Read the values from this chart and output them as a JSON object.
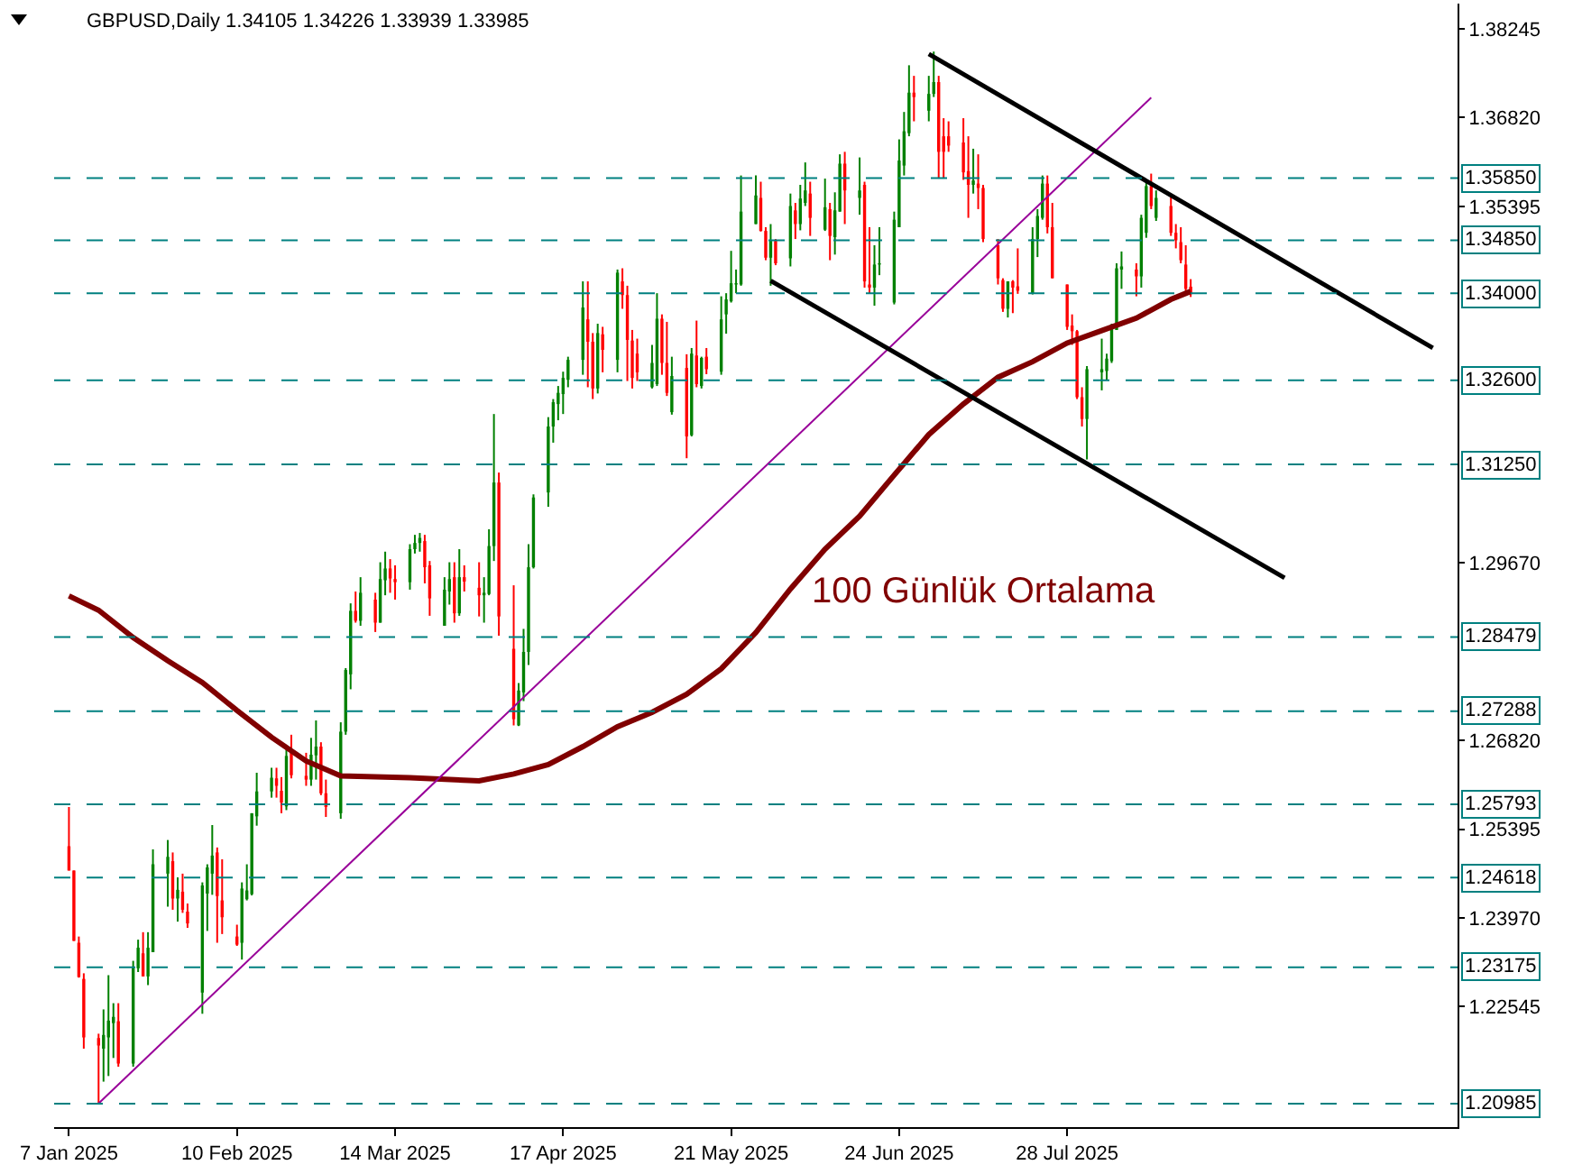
{
  "chart_data": {
    "type": "candlestick",
    "title": "GBPUSD,Daily 1.34105 1.34226 1.33939 1.33985",
    "x": [
      "2025-01-07",
      "2025-01-08",
      "2025-01-09",
      "2025-01-10",
      "2025-01-13",
      "2025-01-14",
      "2025-01-15",
      "2025-01-16",
      "2025-01-17",
      "2025-01-20",
      "2025-01-21",
      "2025-01-22",
      "2025-01-23",
      "2025-01-24",
      "2025-01-27",
      "2025-01-28",
      "2025-01-29",
      "2025-01-30",
      "2025-01-31",
      "2025-02-03",
      "2025-02-04",
      "2025-02-05",
      "2025-02-06",
      "2025-02-07",
      "2025-02-10",
      "2025-02-11",
      "2025-02-12",
      "2025-02-13",
      "2025-02-14",
      "2025-02-17",
      "2025-02-18",
      "2025-02-19",
      "2025-02-20",
      "2025-02-21",
      "2025-02-24",
      "2025-02-25",
      "2025-02-26",
      "2025-02-27",
      "2025-02-28",
      "2025-03-03",
      "2025-03-04",
      "2025-03-05",
      "2025-03-06",
      "2025-03-07",
      "2025-03-10",
      "2025-03-11",
      "2025-03-12",
      "2025-03-13",
      "2025-03-14",
      "2025-03-17",
      "2025-03-18",
      "2025-03-19",
      "2025-03-20",
      "2025-03-21",
      "2025-03-24",
      "2025-03-25",
      "2025-03-26",
      "2025-03-27",
      "2025-03-28",
      "2025-03-31",
      "2025-04-01",
      "2025-04-02",
      "2025-04-03",
      "2025-04-04",
      "2025-04-07",
      "2025-04-08",
      "2025-04-09",
      "2025-04-10",
      "2025-04-11",
      "2025-04-14",
      "2025-04-15",
      "2025-04-16",
      "2025-04-17",
      "2025-04-18",
      "2025-04-21",
      "2025-04-22",
      "2025-04-23",
      "2025-04-24",
      "2025-04-25",
      "2025-04-28",
      "2025-04-29",
      "2025-04-30",
      "2025-05-01",
      "2025-05-02",
      "2025-05-05",
      "2025-05-06",
      "2025-05-07",
      "2025-05-08",
      "2025-05-09",
      "2025-05-12",
      "2025-05-13",
      "2025-05-14",
      "2025-05-15",
      "2025-05-16",
      "2025-05-19",
      "2025-05-20",
      "2025-05-21",
      "2025-05-22",
      "2025-05-23",
      "2025-05-26",
      "2025-05-27",
      "2025-05-28",
      "2025-05-29",
      "2025-05-30",
      "2025-06-02",
      "2025-06-03",
      "2025-06-04",
      "2025-06-05",
      "2025-06-06",
      "2025-06-09",
      "2025-06-10",
      "2025-06-11",
      "2025-06-12",
      "2025-06-13",
      "2025-06-16",
      "2025-06-17",
      "2025-06-18",
      "2025-06-19",
      "2025-06-20",
      "2025-06-23",
      "2025-06-24",
      "2025-06-25",
      "2025-06-26",
      "2025-06-27",
      "2025-06-30",
      "2025-07-01",
      "2025-07-02",
      "2025-07-03",
      "2025-07-04",
      "2025-07-07",
      "2025-07-08",
      "2025-07-09",
      "2025-07-10",
      "2025-07-11",
      "2025-07-14",
      "2025-07-15",
      "2025-07-16",
      "2025-07-17",
      "2025-07-18",
      "2025-07-21",
      "2025-07-22",
      "2025-07-23",
      "2025-07-24",
      "2025-07-25",
      "2025-07-28",
      "2025-07-29",
      "2025-07-30",
      "2025-07-31",
      "2025-08-01",
      "2025-08-04",
      "2025-08-05",
      "2025-08-06",
      "2025-08-07",
      "2025-08-08",
      "2025-08-11",
      "2025-08-12",
      "2025-08-13",
      "2025-08-14",
      "2025-08-15",
      "2025-08-18",
      "2025-08-19",
      "2025-08-20",
      "2025-08-21",
      "2025-08-22"
    ],
    "ohlc": [
      [
        1.2512,
        1.2575,
        1.2473,
        1.2473
      ],
      [
        1.2473,
        1.2473,
        1.236,
        1.236
      ],
      [
        1.2357,
        1.2367,
        1.2301,
        1.2302
      ],
      [
        1.2299,
        1.2308,
        1.2187,
        1.2205
      ],
      [
        1.2204,
        1.2211,
        1.2098,
        1.2192
      ],
      [
        1.2187,
        1.225,
        1.2134,
        1.2209
      ],
      [
        1.2205,
        1.2305,
        1.2143,
        1.2232
      ],
      [
        1.2228,
        1.226,
        1.2172,
        1.2238
      ],
      [
        1.2231,
        1.226,
        1.2158,
        1.2163
      ],
      [
        1.2163,
        1.2328,
        1.2158,
        1.2316
      ],
      [
        1.2316,
        1.2362,
        1.231,
        1.2349
      ],
      [
        1.234,
        1.2374,
        1.2303,
        1.2303
      ],
      [
        1.2303,
        1.2374,
        1.2289,
        1.2349
      ],
      [
        1.2342,
        1.2507,
        1.2342,
        1.2483
      ],
      [
        1.2468,
        1.2522,
        1.2415,
        1.2495
      ],
      [
        1.2488,
        1.2502,
        1.241,
        1.2428
      ],
      [
        1.2428,
        1.2462,
        1.2391,
        1.2442
      ],
      [
        1.2439,
        1.2468,
        1.2405,
        1.241
      ],
      [
        1.2407,
        1.242,
        1.2381,
        1.2388
      ],
      [
        1.2277,
        1.2454,
        1.2243,
        1.2449
      ],
      [
        1.2436,
        1.2483,
        1.2376,
        1.2478
      ],
      [
        1.2468,
        1.2546,
        1.2434,
        1.2497
      ],
      [
        1.2502,
        1.251,
        1.2357,
        1.2432
      ],
      [
        1.2425,
        1.2491,
        1.2371,
        1.2398
      ],
      [
        1.2367,
        1.2386,
        1.2352,
        1.2354
      ],
      [
        1.2357,
        1.2454,
        1.233,
        1.2444
      ],
      [
        1.2427,
        1.2483,
        1.2425,
        1.2441
      ],
      [
        1.2435,
        1.2565,
        1.2433,
        1.2565
      ],
      [
        1.256,
        1.263,
        1.2545,
        1.26
      ],
      [
        1.26,
        1.2638,
        1.259,
        1.2622
      ],
      [
        1.2621,
        1.2638,
        1.259,
        1.2609
      ],
      [
        1.2601,
        1.2623,
        1.2565,
        1.2582
      ],
      [
        1.2576,
        1.2667,
        1.257,
        1.2657
      ],
      [
        1.2665,
        1.2691,
        1.2621,
        1.2626
      ],
      [
        1.2625,
        1.2662,
        1.2609,
        1.2619
      ],
      [
        1.2619,
        1.2686,
        1.2609,
        1.2659
      ],
      [
        1.2658,
        1.2714,
        1.2619,
        1.2672
      ],
      [
        1.2672,
        1.2679,
        1.2594,
        1.2597
      ],
      [
        1.2597,
        1.2619,
        1.2559,
        1.2575
      ],
      [
        1.2565,
        1.2711,
        1.2556,
        1.2696
      ],
      [
        1.2696,
        1.2798,
        1.2691,
        1.2795
      ],
      [
        1.2788,
        1.2902,
        1.2764,
        1.289
      ],
      [
        1.289,
        1.2921,
        1.2871,
        1.2874
      ],
      [
        1.2874,
        1.2944,
        1.2866,
        1.2919
      ],
      [
        1.2908,
        1.2919,
        1.2856,
        1.2871
      ],
      [
        1.2871,
        1.2968,
        1.2871,
        1.2941
      ],
      [
        1.2939,
        1.2985,
        1.2915,
        1.2958
      ],
      [
        1.2958,
        1.2973,
        1.2919,
        1.2942
      ],
      [
        1.2941,
        1.2963,
        1.2908,
        1.2936
      ],
      [
        1.2936,
        1.2997,
        1.2924,
        1.2989
      ],
      [
        1.2989,
        1.3012,
        1.2982,
        1.2999
      ],
      [
        1.2999,
        1.3015,
        1.2985,
        1.3007
      ],
      [
        1.3002,
        1.3012,
        1.2934,
        1.296
      ],
      [
        1.2963,
        1.297,
        1.2882,
        1.291
      ],
      [
        1.2866,
        1.2944,
        1.2866,
        1.2924
      ],
      [
        1.2921,
        1.2968,
        1.29,
        1.2941
      ],
      [
        1.2944,
        1.2968,
        1.2871,
        1.2886
      ],
      [
        1.2886,
        1.2989,
        1.2882,
        1.2944
      ],
      [
        1.2944,
        1.2963,
        1.2921,
        1.2937
      ],
      [
        1.2927,
        1.2968,
        1.2881,
        1.2915
      ],
      [
        1.2915,
        1.2944,
        1.2871,
        1.2919
      ],
      [
        1.2917,
        1.3021,
        1.2915,
        1.2994
      ],
      [
        1.2994,
        1.3206,
        1.297,
        1.3096
      ],
      [
        1.3096,
        1.3112,
        1.285,
        1.2881
      ],
      [
        1.2829,
        1.2931,
        1.2706,
        1.2716
      ],
      [
        1.2706,
        1.2774,
        1.2705,
        1.2762
      ],
      [
        1.2759,
        1.2861,
        1.2745,
        1.2824
      ],
      [
        1.2824,
        1.2997,
        1.2803,
        1.296
      ],
      [
        1.296,
        1.3077,
        1.2958,
        1.3072
      ],
      [
        1.308,
        1.3201,
        1.3057,
        1.3186
      ],
      [
        1.3186,
        1.323,
        1.316,
        1.3225
      ],
      [
        1.3222,
        1.3251,
        1.3196,
        1.324
      ],
      [
        1.3238,
        1.3274,
        1.3206,
        1.3264
      ],
      [
        1.3261,
        1.3298,
        1.3249,
        1.3293
      ],
      [
        1.3293,
        1.3419,
        1.3269,
        1.3377
      ],
      [
        1.3358,
        1.3419,
        1.3249,
        1.3322
      ],
      [
        1.3322,
        1.3336,
        1.323,
        1.3247
      ],
      [
        1.3247,
        1.3351,
        1.3239,
        1.3336
      ],
      [
        1.3334,
        1.3346,
        1.3273,
        1.3309
      ],
      [
        1.3293,
        1.3438,
        1.3273,
        1.3433
      ],
      [
        1.3419,
        1.344,
        1.3375,
        1.3397
      ],
      [
        1.3397,
        1.3412,
        1.3259,
        1.3325
      ],
      [
        1.3324,
        1.3341,
        1.3247,
        1.3264
      ],
      [
        1.3303,
        1.3327,
        1.3259,
        1.3273
      ],
      [
        1.3249,
        1.3317,
        1.3247,
        1.3288
      ],
      [
        1.3254,
        1.34,
        1.3251,
        1.3359
      ],
      [
        1.3359,
        1.3366,
        1.3269,
        1.3288
      ],
      [
        1.3288,
        1.3354,
        1.3235,
        1.324
      ],
      [
        1.3209,
        1.3298,
        1.3205,
        1.3267
      ],
      [
        1.328,
        1.3302,
        1.3135,
        1.317
      ],
      [
        1.3172,
        1.3312,
        1.317,
        1.3303
      ],
      [
        1.33,
        1.3356,
        1.3249,
        1.3254
      ],
      [
        1.3251,
        1.3298,
        1.3247,
        1.3296
      ],
      [
        1.3298,
        1.3312,
        1.327,
        1.3278
      ],
      [
        1.3274,
        1.3395,
        1.3269,
        1.3358
      ],
      [
        1.3366,
        1.34,
        1.3335,
        1.339
      ],
      [
        1.3387,
        1.3468,
        1.3385,
        1.3416
      ],
      [
        1.3414,
        1.3438,
        1.34,
        1.3416
      ],
      [
        1.3414,
        1.3589,
        1.3412,
        1.3531
      ],
      [
        1.3511,
        1.3589,
        1.3511,
        1.3557
      ],
      [
        1.3553,
        1.3579,
        1.3499,
        1.35
      ],
      [
        1.35,
        1.3506,
        1.3453,
        1.3457
      ],
      [
        1.3457,
        1.3511,
        1.3412,
        1.3484
      ],
      [
        1.3484,
        1.3487,
        1.3445,
        1.3448
      ],
      [
        1.3456,
        1.356,
        1.3443,
        1.354
      ],
      [
        1.3533,
        1.3545,
        1.3487,
        1.3511
      ],
      [
        1.3511,
        1.3574,
        1.3501,
        1.3552
      ],
      [
        1.3545,
        1.361,
        1.354,
        1.3565
      ],
      [
        1.356,
        1.3579,
        1.3492,
        1.3521
      ],
      [
        1.3502,
        1.3584,
        1.35,
        1.3538
      ],
      [
        1.3535,
        1.3545,
        1.3453,
        1.3492
      ],
      [
        1.349,
        1.3562,
        1.3462,
        1.3533
      ],
      [
        1.3531,
        1.3623,
        1.3531,
        1.3608
      ],
      [
        1.3608,
        1.3627,
        1.3511,
        1.3565
      ],
      [
        1.3553,
        1.3618,
        1.3526,
        1.3565
      ],
      [
        1.3574,
        1.3579,
        1.3409,
        1.3419
      ],
      [
        1.3414,
        1.3506,
        1.34,
        1.3409
      ],
      [
        1.3409,
        1.3477,
        1.338,
        1.3446
      ],
      [
        1.3446,
        1.3506,
        1.3429,
        1.3448
      ],
      [
        1.3385,
        1.3531,
        1.3382,
        1.3518
      ],
      [
        1.3506,
        1.3647,
        1.3506,
        1.3613
      ],
      [
        1.3605,
        1.3691,
        1.3589,
        1.366
      ],
      [
        1.3657,
        1.3766,
        1.3652,
        1.3722
      ],
      [
        1.3722,
        1.3749,
        1.3676,
        1.3715
      ],
      [
        1.3693,
        1.3749,
        1.3676,
        1.372
      ],
      [
        1.372,
        1.3788,
        1.3715,
        1.3739
      ],
      [
        1.3739,
        1.3749,
        1.3584,
        1.3627
      ],
      [
        1.3652,
        1.3681,
        1.3584,
        1.3627
      ],
      [
        1.3652,
        1.3676,
        1.3627,
        1.3637
      ],
      [
        1.3642,
        1.3681,
        1.3582,
        1.3594
      ],
      [
        1.3596,
        1.3652,
        1.3521,
        1.3574
      ],
      [
        1.3574,
        1.3632,
        1.356,
        1.3581
      ],
      [
        1.3576,
        1.3623,
        1.3535,
        1.3569
      ],
      [
        1.3569,
        1.3574,
        1.3482,
        1.3487
      ],
      [
        1.3477,
        1.3487,
        1.3414,
        1.3424
      ],
      [
        1.3421,
        1.3424,
        1.337,
        1.3375
      ],
      [
        1.3375,
        1.3419,
        1.3361,
        1.3419
      ],
      [
        1.3419,
        1.3421,
        1.3368,
        1.3409
      ],
      [
        1.3411,
        1.3472,
        1.3399,
        1.3404
      ],
      [
        1.3399,
        1.3506,
        1.3398,
        1.3487
      ],
      [
        1.3487,
        1.3535,
        1.3458,
        1.3524
      ],
      [
        1.3521,
        1.3589,
        1.3518,
        1.3576
      ],
      [
        1.3576,
        1.3589,
        1.3496,
        1.3506
      ],
      [
        1.3506,
        1.3545,
        1.3424,
        1.3424
      ],
      [
        1.3414,
        1.3414,
        1.3341,
        1.3346
      ],
      [
        1.3348,
        1.3366,
        1.3317,
        1.3339
      ],
      [
        1.3339,
        1.3341,
        1.323,
        1.3233
      ],
      [
        1.3233,
        1.3249,
        1.3186,
        1.3198
      ],
      [
        1.3198,
        1.3283,
        1.3133,
        1.3278
      ],
      [
        1.3273,
        1.3327,
        1.3244,
        1.3278
      ],
      [
        1.3275,
        1.3303,
        1.326,
        1.3295
      ],
      [
        1.3291,
        1.3351,
        1.3288,
        1.3343
      ],
      [
        1.3341,
        1.3448,
        1.3341,
        1.344
      ],
      [
        1.3438,
        1.3467,
        1.3407,
        1.3443
      ],
      [
        1.3438,
        1.3448,
        1.3395,
        1.3427
      ],
      [
        1.3427,
        1.3526,
        1.3409,
        1.3521
      ],
      [
        1.3497,
        1.3579,
        1.3489,
        1.3572
      ],
      [
        1.3572,
        1.3592,
        1.3535,
        1.354
      ],
      [
        1.3521,
        1.3565,
        1.3516,
        1.3553
      ],
      [
        1.354,
        1.3555,
        1.3492,
        1.3497
      ],
      [
        1.3497,
        1.3511,
        1.3472,
        1.3485
      ],
      [
        1.3482,
        1.3506,
        1.3448,
        1.3453
      ],
      [
        1.3446,
        1.3477,
        1.3401,
        1.3407
      ],
      [
        1.34105,
        1.34226,
        1.33939,
        1.33985
      ]
    ],
    "colors": [
      "#ff0000",
      "#ff0000",
      "#ff0000",
      "#ff0000",
      "#ff0000",
      "#008000",
      "#008000",
      "#008000",
      "#ff0000",
      "#008000",
      "#008000",
      "#ff0000",
      "#008000",
      "#008000",
      "#008000",
      "#ff0000",
      "#008000",
      "#ff0000",
      "#ff0000",
      "#008000",
      "#008000",
      "#008000",
      "#ff0000",
      "#ff0000",
      "#ff0000",
      "#008000",
      "#008000",
      "#008000",
      "#008000",
      "#008000",
      "#ff0000",
      "#ff0000",
      "#008000",
      "#ff0000",
      "#ff0000",
      "#008000",
      "#008000",
      "#ff0000",
      "#ff0000",
      "#008000",
      "#008000",
      "#008000",
      "#ff0000",
      "#008000",
      "#ff0000",
      "#008000",
      "#008000",
      "#ff0000",
      "#ff0000",
      "#008000",
      "#008000",
      "#008000",
      "#ff0000",
      "#ff0000",
      "#008000",
      "#008000",
      "#ff0000",
      "#008000",
      "#ff0000",
      "#ff0000",
      "#008000",
      "#008000",
      "#008000",
      "#ff0000",
      "#ff0000",
      "#008000",
      "#008000",
      "#008000",
      "#008000",
      "#008000",
      "#008000",
      "#008000",
      "#008000",
      "#008000",
      "#008000",
      "#ff0000",
      "#ff0000",
      "#008000",
      "#ff0000",
      "#008000",
      "#ff0000",
      "#ff0000",
      "#ff0000",
      "#ff0000",
      "#008000",
      "#008000",
      "#ff0000",
      "#ff0000",
      "#008000",
      "#ff0000",
      "#008000",
      "#ff0000",
      "#008000",
      "#ff0000",
      "#008000",
      "#008000",
      "#008000",
      "#008000",
      "#008000",
      "#008000",
      "#ff0000",
      "#ff0000",
      "#008000",
      "#ff0000",
      "#008000",
      "#ff0000",
      "#008000",
      "#008000",
      "#ff0000",
      "#008000",
      "#ff0000",
      "#008000",
      "#008000",
      "#ff0000",
      "#008000",
      "#ff0000",
      "#ff0000",
      "#008000",
      "#008000",
      "#008000",
      "#008000",
      "#008000",
      "#008000",
      "#ff0000",
      "#008000",
      "#008000",
      "#ff0000",
      "#ff0000",
      "#ff0000",
      "#ff0000",
      "#ff0000",
      "#008000",
      "#ff0000",
      "#ff0000",
      "#ff0000",
      "#ff0000",
      "#008000",
      "#ff0000",
      "#ff0000",
      "#008000",
      "#008000",
      "#008000",
      "#ff0000",
      "#ff0000",
      "#ff0000",
      "#ff0000",
      "#ff0000",
      "#ff0000",
      "#008000",
      "#008000",
      "#008000",
      "#008000",
      "#008000",
      "#008000",
      "#ff0000",
      "#008000",
      "#008000",
      "#ff0000",
      "#008000",
      "#ff0000",
      "#ff0000",
      "#ff0000",
      "#ff0000",
      "#ff0000"
    ],
    "series": [
      {
        "type": "line",
        "color": "#800000",
        "x": [
          "2025-01-07",
          "2025-01-13",
          "2025-01-20",
          "2025-01-27",
          "2025-02-03",
          "2025-02-10",
          "2025-02-17",
          "2025-02-24",
          "2025-03-03",
          "2025-03-17",
          "2025-03-31",
          "2025-04-07",
          "2025-04-14",
          "2025-04-21",
          "2025-04-28",
          "2025-05-05",
          "2025-05-12",
          "2025-05-19",
          "2025-05-26",
          "2025-06-02",
          "2025-06-09",
          "2025-06-16",
          "2025-06-23",
          "2025-06-30",
          "2025-07-07",
          "2025-07-14",
          "2025-07-21",
          "2025-07-28",
          "2025-08-04",
          "2025-08-11",
          "2025-08-18",
          "2025-08-22"
        ],
        "values": [
          1.2914,
          1.2891,
          1.2847,
          1.281,
          1.2775,
          1.273,
          1.2687,
          1.2649,
          1.2625,
          1.2622,
          1.2617,
          1.2628,
          1.2643,
          1.2672,
          1.2704,
          1.2727,
          1.2756,
          1.2797,
          1.2855,
          1.2925,
          1.2989,
          1.3042,
          1.3108,
          1.3173,
          1.3222,
          1.3265,
          1.329,
          1.332,
          1.334,
          1.336,
          1.339,
          1.3403
        ]
      },
      {
        "type": "line",
        "color": "#990099",
        "x": [
          "2025-01-13",
          "2025-08-14"
        ],
        "values": [
          1.2099,
          1.3714
        ]
      },
      {
        "type": "line",
        "color": "#000000",
        "x": [
          "2025-06-30",
          "2025-10-10"
        ],
        "values": [
          1.3784,
          1.3312
        ]
      },
      {
        "type": "line",
        "color": "#000000",
        "x": [
          "2025-05-29",
          "2025-09-10"
        ],
        "values": [
          1.342,
          1.2943
        ]
      }
    ],
    "xlim": [
      "2025-01-04",
      "2025-10-15"
    ],
    "xticks": [
      {
        "value": "2025-01-07",
        "label": "7 Jan 2025"
      },
      {
        "value": "2025-02-10",
        "label": "10 Feb 2025"
      },
      {
        "value": "2025-03-14",
        "label": "14 Mar 2025"
      },
      {
        "value": "2025-04-17",
        "label": "17 Apr 2025"
      },
      {
        "value": "2025-05-21",
        "label": "21 May 2025"
      },
      {
        "value": "2025-06-24",
        "label": "24 Jun 2025"
      },
      {
        "value": "2025-07-28",
        "label": "28 Jul 2025"
      }
    ],
    "ylim": [
      1.2061,
      1.3865
    ],
    "yticks": [
      {
        "value": 1.22545,
        "label": "1.22545"
      },
      {
        "value": 1.2397,
        "label": "1.23970"
      },
      {
        "value": 1.25395,
        "label": "1.25395"
      },
      {
        "value": 1.2682,
        "label": "1.26820"
      },
      {
        "value": 1.2967,
        "label": "1.29670"
      },
      {
        "value": 1.35395,
        "label": "1.35395"
      },
      {
        "value": 1.3682,
        "label": "1.36820"
      },
      {
        "value": 1.38245,
        "label": "1.38245"
      }
    ],
    "ref_lines": [
      {
        "axis": "y",
        "value": 1.3585,
        "label": "1.35850",
        "color": "#008080",
        "line_style": "dashed"
      },
      {
        "axis": "y",
        "value": 1.3485,
        "label": "1.34850",
        "color": "#008080",
        "line_style": "dashed"
      },
      {
        "axis": "y",
        "value": 1.34,
        "label": "1.34000",
        "color": "#008080",
        "line_style": "dashed"
      },
      {
        "axis": "y",
        "value": 1.326,
        "label": "1.32600",
        "color": "#008080",
        "line_style": "dashed"
      },
      {
        "axis": "y",
        "value": 1.3125,
        "label": "1.31250",
        "color": "#008080",
        "line_style": "dashed"
      },
      {
        "axis": "y",
        "value": 1.28479,
        "label": "1.28479",
        "color": "#008080",
        "line_style": "dashed"
      },
      {
        "axis": "y",
        "value": 1.27288,
        "label": "1.27288",
        "color": "#008080",
        "line_style": "dashed"
      },
      {
        "axis": "y",
        "value": 1.25793,
        "label": "1.25793",
        "color": "#008080",
        "line_style": "dashed"
      },
      {
        "axis": "y",
        "value": 1.24618,
        "label": "1.24618",
        "color": "#008080",
        "line_style": "dashed"
      },
      {
        "axis": "y",
        "value": 1.23175,
        "label": "1.23175",
        "color": "#008080",
        "line_style": "dashed"
      },
      {
        "axis": "y",
        "value": 1.20985,
        "label": "1.20985",
        "color": "#008080",
        "line_style": "dashed"
      }
    ],
    "annotations": [
      "100 Günlük Ortalama"
    ]
  }
}
